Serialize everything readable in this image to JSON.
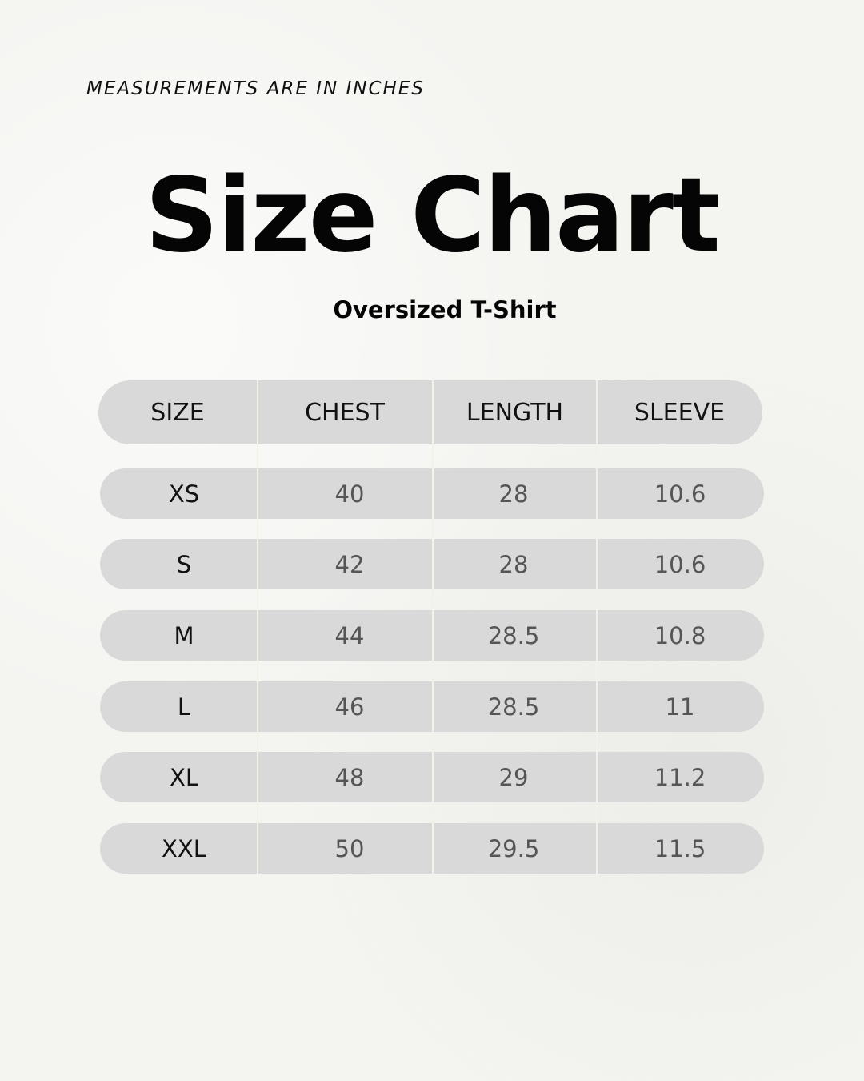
{
  "note": "MEASUREMENTS ARE IN INCHES",
  "title": "Size Chart",
  "subtitle": "Oversized T-Shirt",
  "colors": {
    "pill": "#d9d9d9",
    "background": "#f4f4f1",
    "value_text": "#555555"
  },
  "table": {
    "headers": [
      "SIZE",
      "CHEST",
      "LENGTH",
      "SLEEVE"
    ],
    "rows": [
      [
        "XS",
        "40",
        "28",
        "10.6"
      ],
      [
        "S",
        "42",
        "28",
        "10.6"
      ],
      [
        "M",
        "44",
        "28.5",
        "10.8"
      ],
      [
        "L",
        "46",
        "28.5",
        "11"
      ],
      [
        "XL",
        "48",
        "29",
        "11.2"
      ],
      [
        "XXL",
        "50",
        "29.5",
        "11.5"
      ]
    ]
  }
}
